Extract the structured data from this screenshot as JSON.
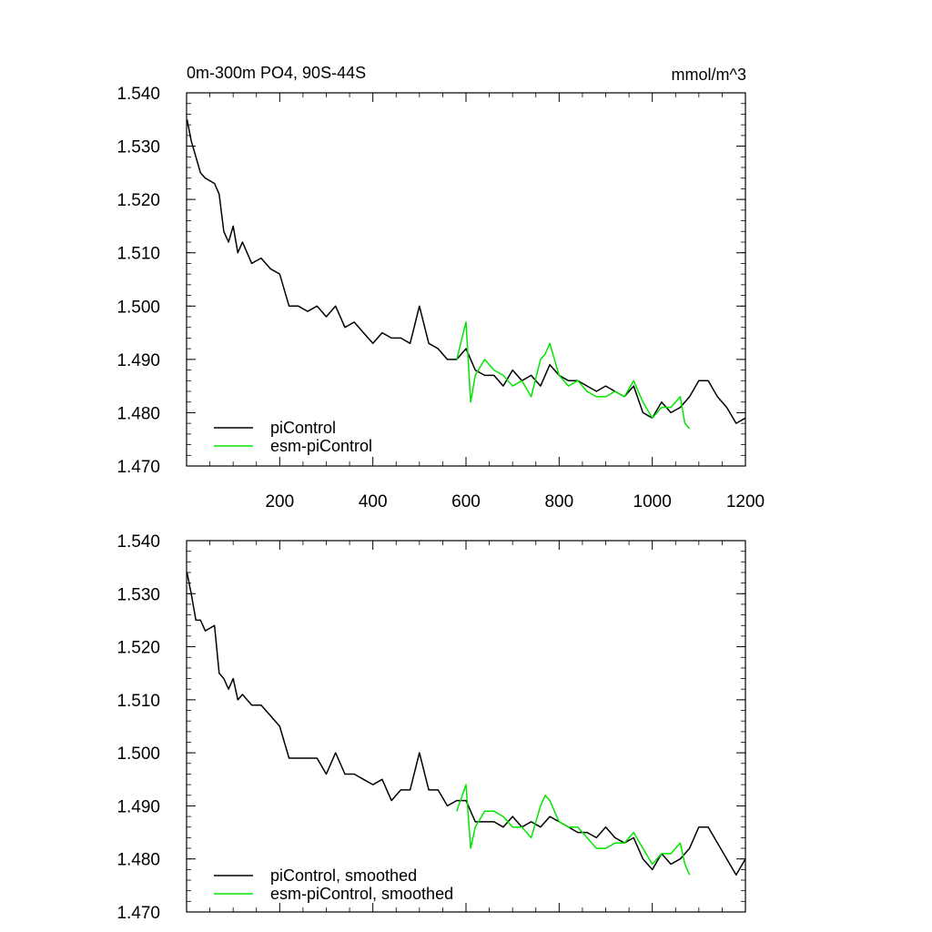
{
  "chart_data": [
    {
      "type": "line",
      "title": "0m-300m PO4, 90S-44S",
      "units": "mmol/m^3",
      "xlabel": "",
      "ylabel": "",
      "xlim": [
        0,
        1200
      ],
      "ylim": [
        1.47,
        1.54
      ],
      "xticks": [
        200,
        400,
        600,
        800,
        1000,
        1200
      ],
      "xtick_labels": [
        "200",
        "400",
        "600",
        "800",
        "1000",
        "1200"
      ],
      "yticks": [
        1.47,
        1.48,
        1.49,
        1.5,
        1.51,
        1.52,
        1.53,
        1.54
      ],
      "ytick_labels": [
        "1.470",
        "1.480",
        "1.490",
        "1.500",
        "1.510",
        "1.520",
        "1.530",
        "1.540"
      ],
      "grid": false,
      "legend_position": "bottom-left",
      "series": [
        {
          "name": "piControl",
          "color": "#000000",
          "x": [
            1,
            10,
            20,
            30,
            40,
            60,
            70,
            80,
            90,
            100,
            110,
            120,
            140,
            160,
            180,
            200,
            220,
            240,
            260,
            280,
            300,
            320,
            340,
            360,
            380,
            400,
            420,
            440,
            460,
            480,
            500,
            520,
            540,
            560,
            580,
            600,
            620,
            640,
            660,
            680,
            700,
            720,
            740,
            760,
            780,
            800,
            820,
            840,
            860,
            880,
            900,
            920,
            940,
            960,
            980,
            1000,
            1020,
            1040,
            1060,
            1080,
            1100,
            1120,
            1140,
            1160,
            1180,
            1200
          ],
          "y": [
            1.535,
            1.531,
            1.528,
            1.525,
            1.524,
            1.523,
            1.521,
            1.514,
            1.512,
            1.515,
            1.51,
            1.512,
            1.508,
            1.509,
            1.507,
            1.506,
            1.5,
            1.5,
            1.499,
            1.5,
            1.498,
            1.5,
            1.496,
            1.497,
            1.495,
            1.493,
            1.495,
            1.494,
            1.494,
            1.493,
            1.5,
            1.493,
            1.492,
            1.49,
            1.49,
            1.492,
            1.488,
            1.487,
            1.487,
            1.485,
            1.488,
            1.486,
            1.487,
            1.485,
            1.489,
            1.487,
            1.486,
            1.486,
            1.485,
            1.484,
            1.485,
            1.484,
            1.483,
            1.485,
            1.48,
            1.479,
            1.482,
            1.48,
            1.481,
            1.483,
            1.486,
            1.486,
            1.483,
            1.481,
            1.478,
            1.479
          ]
        },
        {
          "name": "esm-piControl",
          "color": "#00e600",
          "x": [
            580,
            600,
            610,
            620,
            640,
            660,
            680,
            700,
            720,
            740,
            760,
            770,
            780,
            790,
            800,
            820,
            840,
            860,
            880,
            900,
            920,
            940,
            960,
            980,
            1000,
            1020,
            1040,
            1060,
            1070,
            1080
          ],
          "y": [
            1.49,
            1.497,
            1.482,
            1.487,
            1.49,
            1.488,
            1.487,
            1.485,
            1.486,
            1.483,
            1.49,
            1.491,
            1.493,
            1.49,
            1.487,
            1.485,
            1.486,
            1.484,
            1.483,
            1.483,
            1.484,
            1.483,
            1.486,
            1.482,
            1.479,
            1.481,
            1.481,
            1.483,
            1.478,
            1.477
          ]
        }
      ]
    },
    {
      "type": "line",
      "title": "",
      "xlabel": "",
      "ylabel": "",
      "xlim": [
        0,
        1200
      ],
      "ylim": [
        1.47,
        1.54
      ],
      "yticks": [
        1.47,
        1.48,
        1.49,
        1.5,
        1.51,
        1.52,
        1.53,
        1.54
      ],
      "ytick_labels": [
        "1.470",
        "1.480",
        "1.490",
        "1.500",
        "1.510",
        "1.520",
        "1.530",
        "1.540"
      ],
      "grid": false,
      "legend_position": "bottom-left",
      "series": [
        {
          "name": "piControl, smoothed",
          "color": "#000000",
          "x": [
            1,
            10,
            20,
            30,
            40,
            60,
            70,
            80,
            90,
            100,
            110,
            120,
            140,
            160,
            180,
            200,
            220,
            240,
            260,
            280,
            300,
            320,
            340,
            360,
            380,
            400,
            420,
            440,
            460,
            480,
            500,
            520,
            540,
            560,
            580,
            600,
            620,
            640,
            660,
            680,
            700,
            720,
            740,
            760,
            780,
            800,
            820,
            840,
            860,
            880,
            900,
            920,
            940,
            960,
            980,
            1000,
            1020,
            1040,
            1060,
            1080,
            1100,
            1120,
            1140,
            1160,
            1180,
            1200
          ],
          "y": [
            1.534,
            1.53,
            1.525,
            1.525,
            1.523,
            1.524,
            1.515,
            1.514,
            1.512,
            1.514,
            1.51,
            1.511,
            1.509,
            1.509,
            1.507,
            1.505,
            1.499,
            1.499,
            1.499,
            1.499,
            1.496,
            1.5,
            1.496,
            1.496,
            1.495,
            1.494,
            1.495,
            1.491,
            1.493,
            1.493,
            1.5,
            1.493,
            1.493,
            1.49,
            1.491,
            1.491,
            1.487,
            1.487,
            1.487,
            1.486,
            1.488,
            1.486,
            1.487,
            1.486,
            1.488,
            1.487,
            1.486,
            1.485,
            1.485,
            1.484,
            1.486,
            1.484,
            1.483,
            1.484,
            1.48,
            1.478,
            1.481,
            1.479,
            1.48,
            1.482,
            1.486,
            1.486,
            1.483,
            1.48,
            1.477,
            1.48
          ]
        },
        {
          "name": "esm-piControl, smoothed",
          "color": "#00e600",
          "x": [
            580,
            600,
            610,
            620,
            640,
            660,
            680,
            700,
            720,
            740,
            760,
            770,
            780,
            790,
            800,
            820,
            840,
            860,
            880,
            900,
            920,
            940,
            960,
            980,
            1000,
            1020,
            1040,
            1060,
            1070,
            1080
          ],
          "y": [
            1.489,
            1.494,
            1.482,
            1.486,
            1.489,
            1.489,
            1.488,
            1.486,
            1.486,
            1.484,
            1.49,
            1.492,
            1.491,
            1.489,
            1.487,
            1.486,
            1.486,
            1.484,
            1.482,
            1.482,
            1.483,
            1.483,
            1.485,
            1.482,
            1.479,
            1.481,
            1.481,
            1.483,
            1.479,
            1.477
          ]
        }
      ]
    }
  ]
}
